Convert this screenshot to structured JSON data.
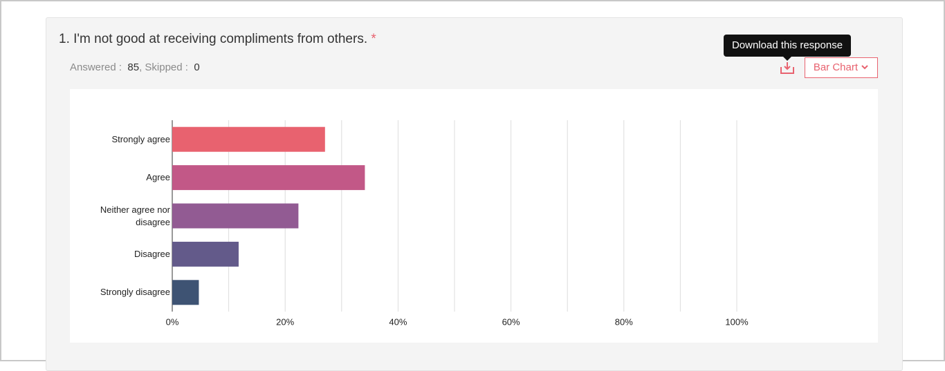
{
  "question": {
    "text": "1. I'm not good at receiving compliments from others.",
    "required_mark": "*"
  },
  "stats": {
    "answered_label": "Answered :",
    "answered": 85,
    "skipped_label": ", Skipped :",
    "skipped": 0
  },
  "tooltip": "Download this response",
  "chart_type_button": "Bar Chart",
  "chart_data": {
    "type": "bar",
    "orientation": "horizontal",
    "categories": [
      "Strongly agree",
      "Agree",
      "Neither agree nor disagree",
      "Disagree",
      "Strongly disagree"
    ],
    "values": [
      27.06,
      34.12,
      22.35,
      11.76,
      4.71
    ],
    "colors": [
      "#e8626f",
      "#c25887",
      "#925b93",
      "#635a8a",
      "#3e5373"
    ],
    "xlim": [
      0,
      100
    ],
    "xticks": [
      {
        "value": 0,
        "label": "0%"
      },
      {
        "value": 20,
        "label": "20%"
      },
      {
        "value": 40,
        "label": "40%"
      },
      {
        "value": 60,
        "label": "60%"
      },
      {
        "value": 80,
        "label": "80%"
      },
      {
        "value": 100,
        "label": "100%"
      }
    ],
    "minor_xticks": [
      10,
      30,
      50,
      70,
      90
    ],
    "grid": true
  }
}
